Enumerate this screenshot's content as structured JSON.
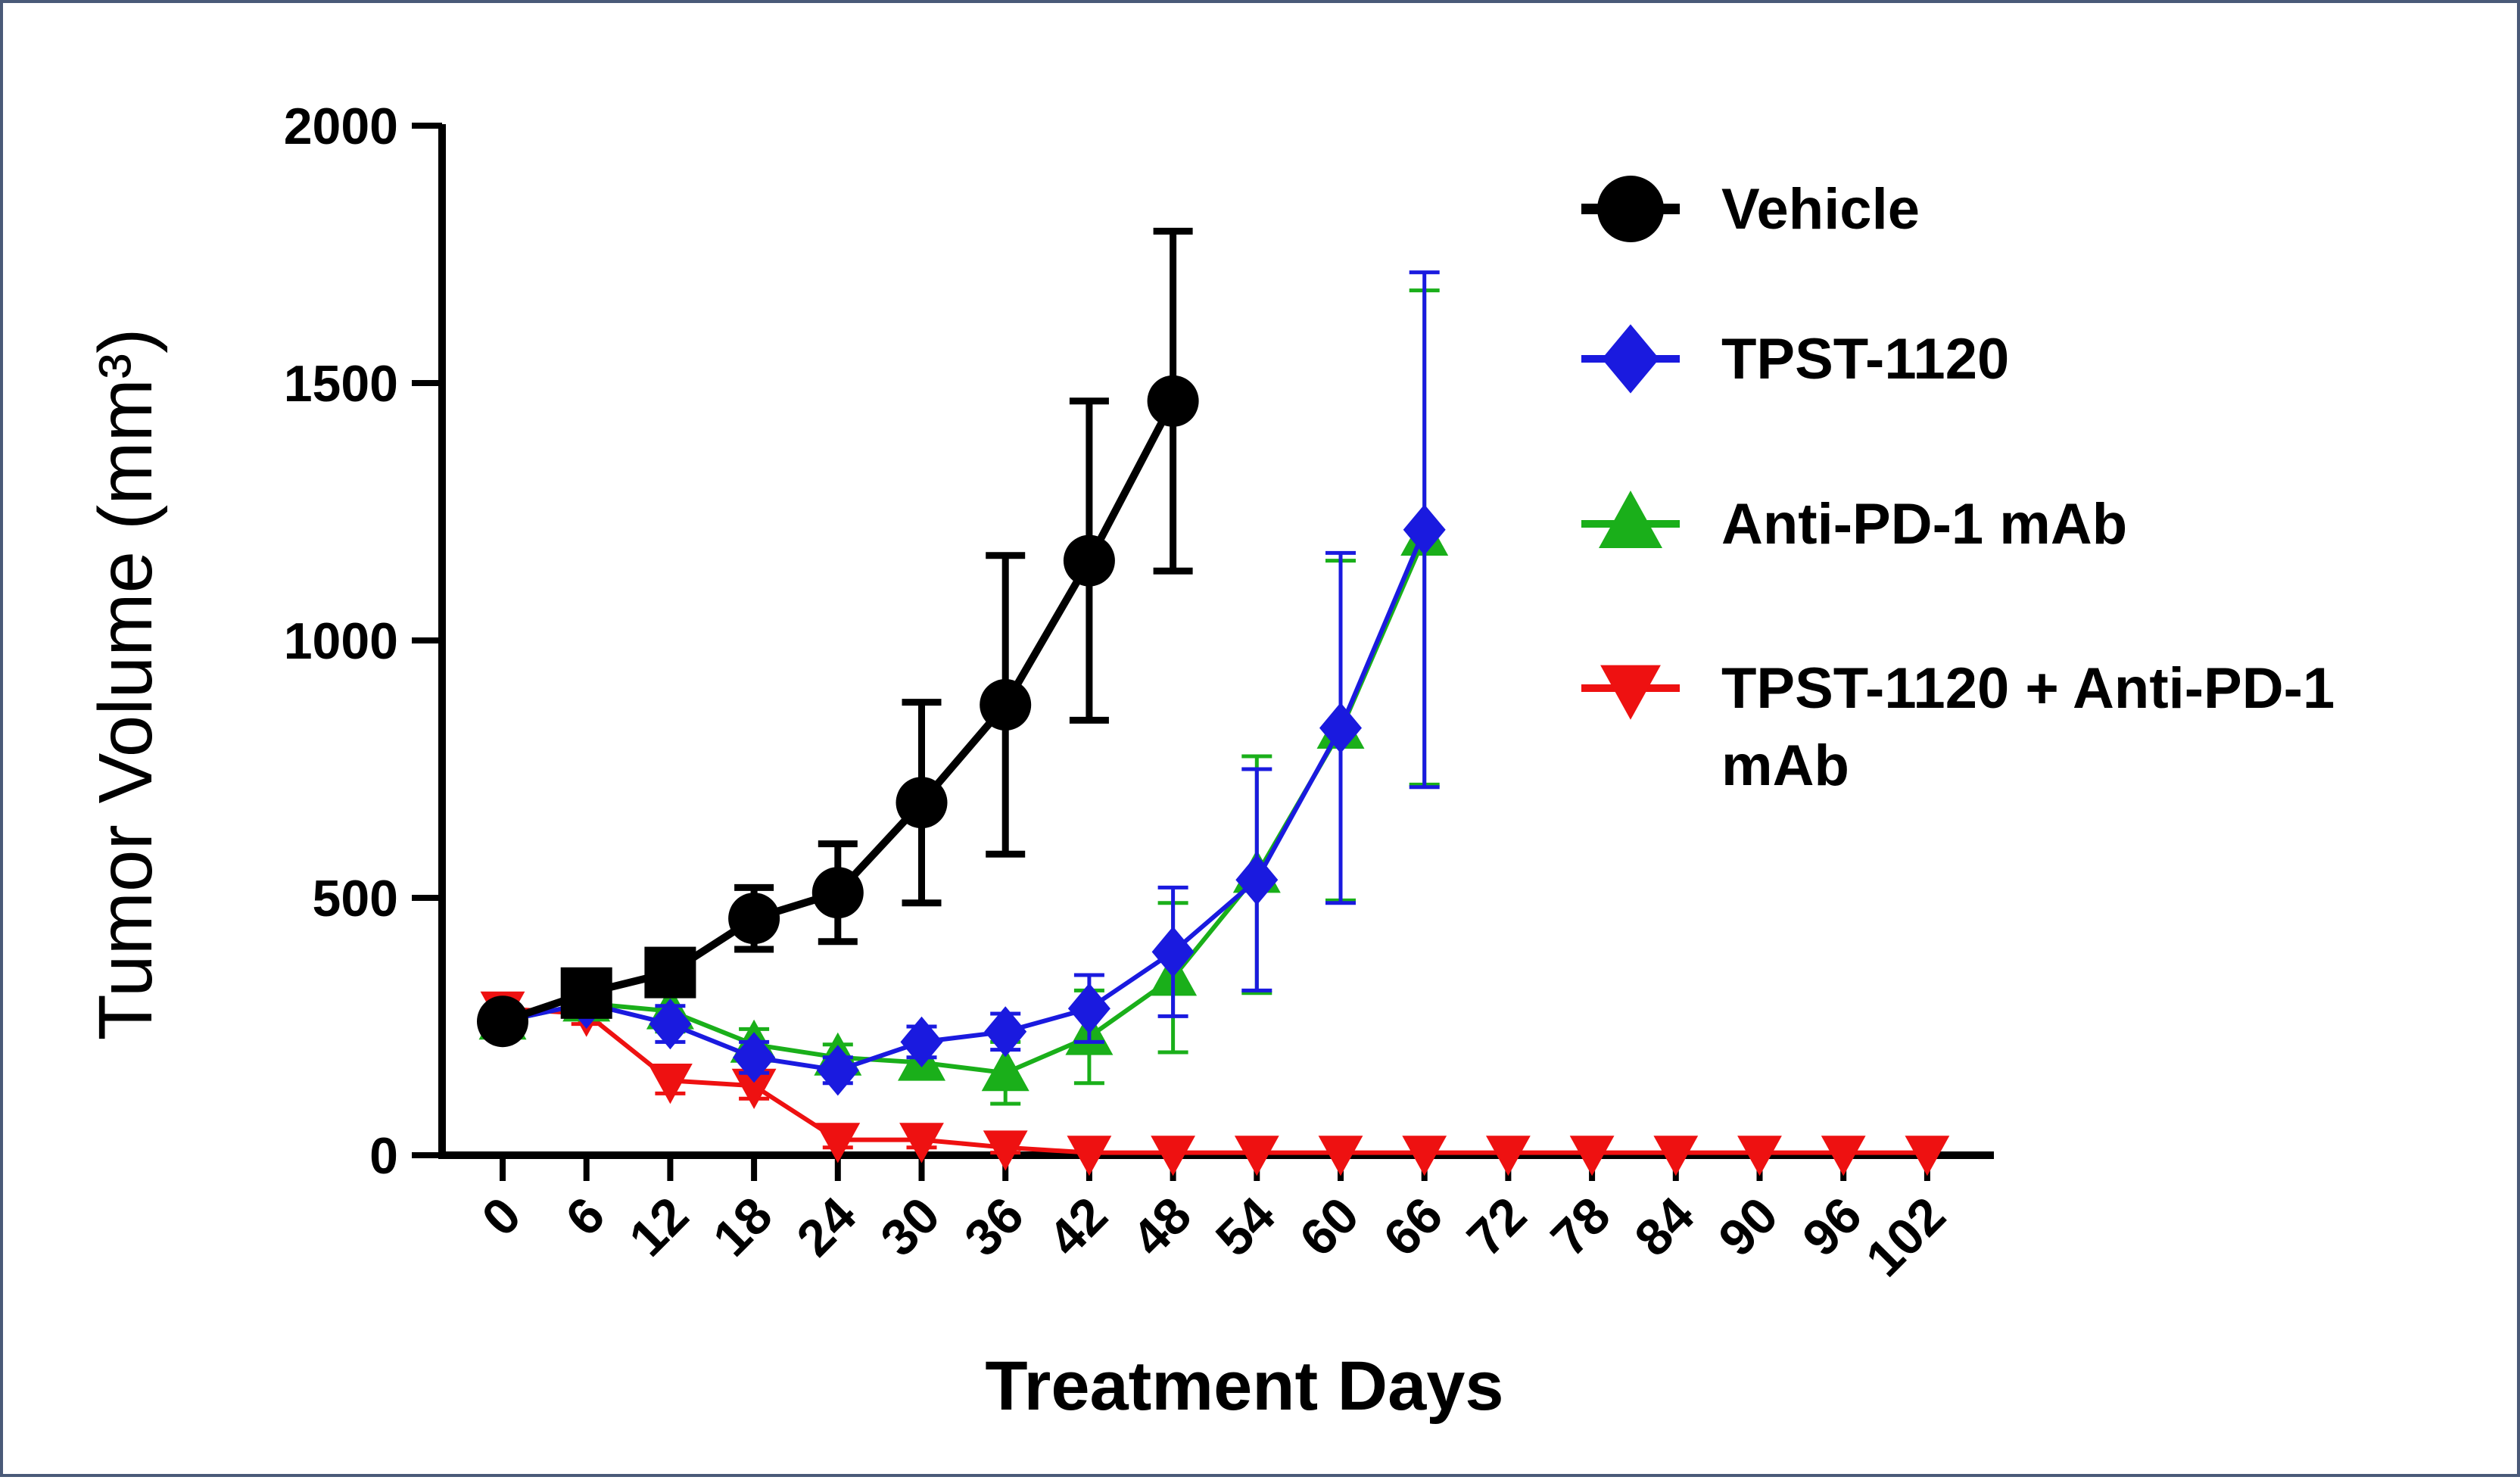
{
  "chart_data": {
    "type": "line",
    "title": "",
    "xlabel": "Treatment Days",
    "ylabel": "Tumor Volume (mm³)",
    "x_ticks": [
      0,
      6,
      12,
      18,
      24,
      30,
      36,
      42,
      48,
      54,
      60,
      66,
      72,
      78,
      84,
      90,
      96,
      102
    ],
    "x_tick_labels": [
      "0",
      "6",
      "12",
      "18",
      "24",
      "30",
      "36",
      "42",
      "48",
      "54",
      "60",
      "66",
      "72",
      "78",
      "84",
      "90",
      "96",
      "102"
    ],
    "y_ticks": [
      0,
      500,
      1000,
      1500,
      2000
    ],
    "y_tick_labels": [
      "0",
      "500",
      "1000",
      "1500",
      "2000"
    ],
    "ylim": [
      0,
      2000
    ],
    "legend_position": "right",
    "series": [
      {
        "name": "Vehicle",
        "label_lines": [
          "Vehicle"
        ],
        "color": "#000000",
        "marker": "circle",
        "x": [
          0,
          6,
          12,
          18,
          24,
          30,
          36,
          42,
          48
        ],
        "y": [
          260,
          315,
          355,
          460,
          510,
          685,
          875,
          1155,
          1465
        ],
        "err": [
          20,
          25,
          35,
          60,
          95,
          195,
          290,
          310,
          330
        ]
      },
      {
        "name": "TPST-1120",
        "label_lines": [
          "TPST-1120"
        ],
        "color": "#1a1adf",
        "marker": "diamond",
        "x": [
          0,
          6,
          12,
          18,
          24,
          30,
          36,
          42,
          48,
          54,
          60,
          66
        ],
        "y": [
          260,
          295,
          255,
          190,
          165,
          220,
          240,
          285,
          395,
          535,
          830,
          1215
        ],
        "err": [
          20,
          25,
          35,
          30,
          25,
          30,
          35,
          65,
          125,
          215,
          340,
          500
        ]
      },
      {
        "name": "Anti-PD-1 mAb",
        "label_lines": [
          "Anti-PD-1 mAb"
        ],
        "color": "#1aaf1a",
        "marker": "triangle-up",
        "x": [
          0,
          6,
          12,
          18,
          24,
          30,
          36,
          42,
          48,
          54,
          60,
          66
        ],
        "y": [
          260,
          295,
          280,
          215,
          190,
          180,
          160,
          230,
          345,
          545,
          825,
          1200
        ],
        "err": [
          20,
          25,
          40,
          30,
          25,
          30,
          60,
          90,
          145,
          230,
          330,
          480
        ]
      },
      {
        "name": "TPST-1120 + Anti-PD-1 mAb",
        "label_lines": [
          "TPST-1120 + Anti-PD-1",
          "mAb"
        ],
        "color": "#ee1111",
        "marker": "triangle-down",
        "x": [
          0,
          6,
          12,
          18,
          24,
          30,
          36,
          42,
          48,
          54,
          60,
          66,
          72,
          78,
          84,
          90,
          96,
          102
        ],
        "y": [
          285,
          275,
          145,
          135,
          30,
          30,
          15,
          5,
          5,
          5,
          5,
          5,
          5,
          5,
          5,
          5,
          5,
          5
        ],
        "err": [
          15,
          20,
          25,
          25,
          15,
          15,
          10,
          0,
          0,
          0,
          0,
          0,
          0,
          0,
          0,
          0,
          0,
          0
        ]
      }
    ]
  }
}
